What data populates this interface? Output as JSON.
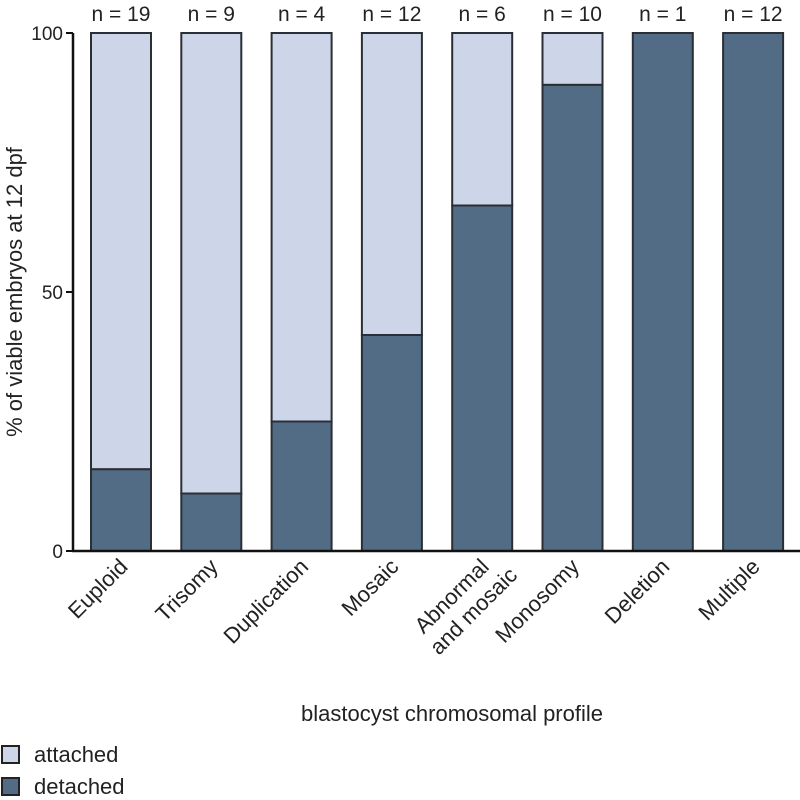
{
  "chart_data": {
    "type": "bar",
    "stacked": true,
    "percent": true,
    "title": "",
    "xlabel": "blastocyst chromosomal profile",
    "ylabel": "% of viable embryos at 12 dpf",
    "ylim": [
      0,
      100
    ],
    "yticks": [
      0,
      50,
      100
    ],
    "grid": false,
    "categories": [
      "Euploid",
      "Trisomy",
      "Duplication",
      "Mosaic",
      "Abnormal\nand mosaic",
      "Monosomy",
      "Deletion",
      "Multiple"
    ],
    "n_labels": [
      "n = 19",
      "n = 9",
      "n = 4",
      "n = 12",
      "n = 6",
      "n = 10",
      "n = 1",
      "n = 12"
    ],
    "series": [
      {
        "name": "detached",
        "color": "#526c85",
        "values": [
          15.8,
          11.1,
          25.0,
          41.7,
          66.7,
          90.0,
          100,
          100
        ]
      },
      {
        "name": "attached",
        "color": "#cdd6e8",
        "values": [
          84.2,
          88.9,
          75.0,
          58.3,
          33.3,
          10.0,
          0,
          0
        ]
      }
    ],
    "legend": {
      "position": "bottom-left",
      "entries": [
        "attached",
        "detached"
      ]
    }
  }
}
